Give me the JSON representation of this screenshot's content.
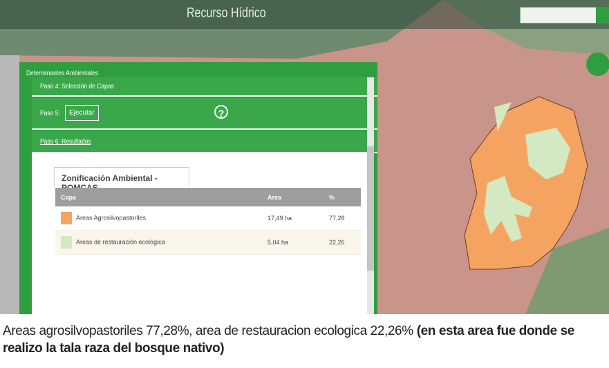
{
  "top_bar": {
    "title": "Recurso Hídrico"
  },
  "panel": {
    "title": "Determinantes Ambientales",
    "steps": [
      {
        "label": "Paso 4: Selección de Capas"
      },
      {
        "label": "Paso 5:",
        "button": "Ejecutar",
        "help": "?"
      },
      {
        "label": "Paso 6: Resultados"
      }
    ],
    "tab": "Zonificación Ambiental - POMCAS",
    "table": {
      "headers": [
        "Capa",
        "Area",
        "%"
      ],
      "rows": [
        [
          "Areas Agrosilvopastoriles",
          "17,49 ha",
          "77,28"
        ],
        [
          "Areas de restauración ecológica",
          "5,04 ha",
          "22,26"
        ]
      ]
    }
  },
  "caption": {
    "text": "Areas agrosilvopastoriles 77,28%, area de restauracion ecologica 22,26%",
    "emphasis": "(en esta area fue donde se realizo la tala raza del bosque nativo)"
  }
}
